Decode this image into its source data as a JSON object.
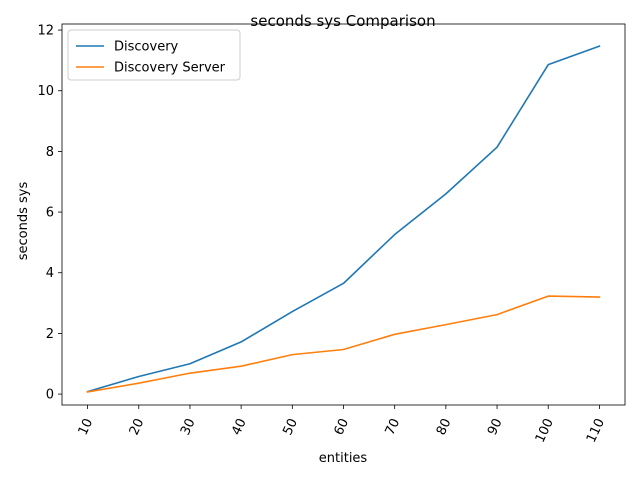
{
  "chart_data": {
    "type": "line",
    "title": "seconds sys Comparison",
    "xlabel": "entities",
    "ylabel": "seconds sys",
    "x": [
      10,
      20,
      30,
      40,
      50,
      60,
      70,
      80,
      90,
      100,
      110
    ],
    "x_tick_labels": [
      "10",
      "20",
      "30",
      "40",
      "50",
      "60",
      "70",
      "80",
      "90",
      "100",
      "110"
    ],
    "y_ticks": [
      0,
      2,
      4,
      6,
      8,
      10,
      12
    ],
    "y_tick_labels": [
      "0",
      "2",
      "4",
      "6",
      "8",
      "10",
      "12"
    ],
    "xlim": [
      5.0,
      115.0
    ],
    "ylim": [
      -0.36,
      12.2
    ],
    "grid": false,
    "legend_position": "upper-left",
    "x_tick_rotation_deg": 65,
    "series": [
      {
        "name": "Discovery",
        "color": "#1f77b4",
        "values": [
          0.08,
          0.58,
          1.0,
          1.72,
          2.72,
          3.65,
          5.26,
          6.6,
          8.14,
          10.86,
          11.47
        ]
      },
      {
        "name": "Discovery Server",
        "color": "#ff7f0e",
        "values": [
          0.07,
          0.36,
          0.69,
          0.92,
          1.3,
          1.47,
          1.97,
          2.29,
          2.62,
          3.23,
          3.2
        ]
      }
    ]
  }
}
